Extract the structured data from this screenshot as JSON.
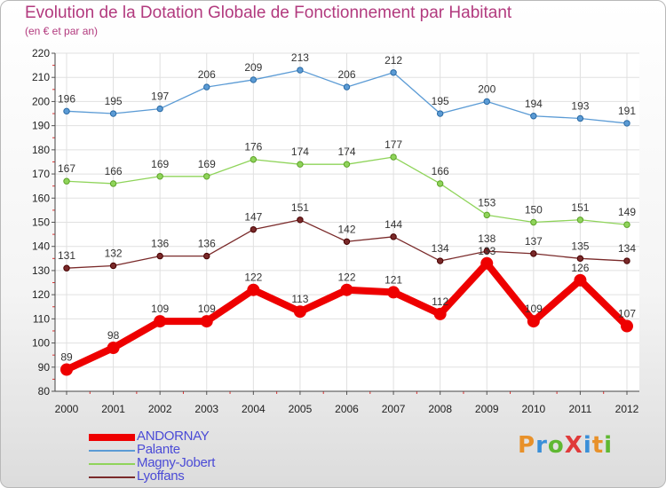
{
  "title": "Evolution de la Dotation Globale de Fonctionnement par Habitant",
  "subtitle": "(en € et par an)",
  "logo": {
    "text": "ProXiti",
    "colors": [
      "#e8912a",
      "#3a8fd8",
      "#5fb832",
      "#e03a3a",
      "#3a8fd8",
      "#e8912a",
      "#5fb832"
    ]
  },
  "chart_data": {
    "type": "line",
    "title": "Evolution de la Dotation Globale de Fonctionnement par Habitant",
    "subtitle": "(en € et par an)",
    "xlabel": "",
    "ylabel": "",
    "ylim": [
      80,
      220
    ],
    "yticks": [
      80,
      90,
      100,
      110,
      120,
      130,
      140,
      150,
      160,
      170,
      180,
      190,
      200,
      210,
      220
    ],
    "grid": true,
    "legend_position": "bottom-left",
    "x": [
      "2000",
      "2001",
      "2002",
      "2003",
      "2004",
      "2005",
      "2006",
      "2007",
      "2008",
      "2009",
      "2010",
      "2011",
      "2012"
    ],
    "series": [
      {
        "name": "ANDORNAY",
        "color": "#ee0000",
        "emphasis": true,
        "values": [
          89,
          98,
          109,
          109,
          122,
          113,
          122,
          121,
          112,
          133,
          109,
          126,
          107
        ]
      },
      {
        "name": "Palante",
        "color": "#5b9bd5",
        "emphasis": false,
        "values": [
          196,
          195,
          197,
          206,
          209,
          213,
          206,
          212,
          195,
          200,
          194,
          193,
          191
        ]
      },
      {
        "name": "Magny-Jobert",
        "color": "#8fd45a",
        "emphasis": false,
        "values": [
          167,
          166,
          169,
          169,
          176,
          174,
          174,
          177,
          166,
          153,
          150,
          151,
          149
        ]
      },
      {
        "name": "Lyoffans",
        "color": "#7a2a2a",
        "emphasis": false,
        "values": [
          131,
          132,
          136,
          136,
          147,
          151,
          142,
          144,
          134,
          138,
          137,
          135,
          134
        ]
      }
    ]
  }
}
